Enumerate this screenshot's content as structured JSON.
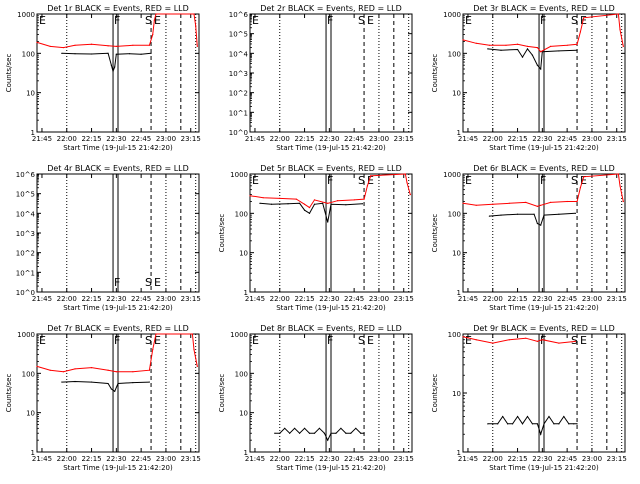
{
  "figure": {
    "colors": {
      "events": "#000000",
      "lld": "#ff0000",
      "axes": "#000000"
    }
  },
  "chart_data": [
    {
      "type": "line",
      "title": "Det 1r BLACK = Events, RED = LLD",
      "xlabel": "Start Time (19-Jul-15 21:42:20)",
      "ylabel": "Counts/sec",
      "yscale": "log",
      "xlim": [
        "21:42",
        "23:20"
      ],
      "ylim": [
        1,
        1000
      ],
      "xticks": [
        "21:45",
        "22:00",
        "22:15",
        "22:30",
        "22:45",
        "23:00",
        "23:15"
      ],
      "yticks": [
        "1",
        "10",
        "100",
        "1000"
      ],
      "annotations": [
        "E",
        "F",
        "S",
        "E"
      ],
      "series": [
        {
          "name": "Events",
          "color": "#000000",
          "x": [
            "21:57",
            "22:05",
            "22:15",
            "22:25",
            "22:27",
            "22:28",
            "22:29",
            "22:30",
            "22:38",
            "22:45",
            "22:51"
          ],
          "values": [
            100,
            98,
            96,
            100,
            50,
            35,
            45,
            95,
            98,
            95,
            100
          ]
        },
        {
          "name": "LLD",
          "color": "#ff0000",
          "x": [
            "21:42",
            "21:50",
            "21:58",
            "22:05",
            "22:15",
            "22:25",
            "22:30",
            "22:40",
            "22:50",
            "22:52",
            "22:53",
            "22:54",
            "23:17",
            "23:18",
            "23:19"
          ],
          "values": [
            190,
            150,
            140,
            160,
            170,
            155,
            150,
            160,
            160,
            300,
            700,
            1000,
            1000,
            500,
            150
          ]
        }
      ],
      "markers": {
        "dotted": [
          "22:00",
          "23:00",
          "23:18"
        ],
        "solid": [
          "22:28",
          "22:31"
        ],
        "dashed": [
          "22:51",
          "23:09"
        ]
      }
    },
    {
      "type": "line",
      "title": "Det 2r BLACK = Events, RED = LLD",
      "xlabel": "Start Time (19-Jul-15 21:42:20)",
      "ylabel": "",
      "yscale": "log",
      "xlim": [
        "21:42",
        "23:20"
      ],
      "ylim": [
        1,
        1000000
      ],
      "xticks": [
        "21:45",
        "22:00",
        "22:15",
        "22:30",
        "22:45",
        "23:00",
        "23:15"
      ],
      "yticks": [
        "10^0",
        "10^1",
        "10^2",
        "10^3",
        "10^4",
        "10^5",
        "10^6"
      ],
      "annotations": [
        "E",
        "F",
        "S",
        "E"
      ],
      "series": [],
      "markers": {
        "dotted": [
          "22:00",
          "23:00",
          "23:18"
        ],
        "solid": [
          "22:28",
          "22:31"
        ],
        "dashed": [
          "22:51",
          "23:09"
        ]
      }
    },
    {
      "type": "line",
      "title": "Det 3r BLACK = Events, RED = LLD",
      "xlabel": "Start Time (19-Jul-15 21:42:20)",
      "ylabel": "Counts/sec",
      "yscale": "log",
      "xlim": [
        "21:42",
        "23:20"
      ],
      "ylim": [
        1,
        1000
      ],
      "xticks": [
        "21:45",
        "22:00",
        "22:15",
        "22:30",
        "22:45",
        "23:00",
        "23:15"
      ],
      "yticks": [
        "1",
        "10",
        "100",
        "1000"
      ],
      "annotations": [
        "E",
        "F",
        "S",
        "E"
      ],
      "series": [
        {
          "name": "Events",
          "color": "#000000",
          "x": [
            "21:57",
            "22:05",
            "22:15",
            "22:18",
            "22:21",
            "22:24",
            "22:27",
            "22:29",
            "22:30",
            "22:40",
            "22:51"
          ],
          "values": [
            130,
            120,
            125,
            80,
            130,
            90,
            50,
            40,
            110,
            115,
            120
          ]
        },
        {
          "name": "LLD",
          "color": "#ff0000",
          "x": [
            "21:42",
            "21:50",
            "21:58",
            "22:08",
            "22:15",
            "22:21",
            "22:27",
            "22:29",
            "22:35",
            "22:45",
            "22:51",
            "22:53",
            "22:55",
            "23:16",
            "23:17",
            "23:19"
          ],
          "values": [
            220,
            180,
            160,
            160,
            170,
            150,
            140,
            110,
            150,
            160,
            170,
            350,
            800,
            1000,
            400,
            150
          ]
        }
      ],
      "markers": {
        "dotted": [
          "22:00",
          "23:00",
          "23:18"
        ],
        "solid": [
          "22:28",
          "22:31"
        ],
        "dashed": [
          "22:51",
          "23:09"
        ]
      }
    },
    {
      "type": "line",
      "title": "Det 4r BLACK = Events, RED = LLD",
      "xlabel": "Start Time (19-Jul-15 21:42:20)",
      "ylabel": "",
      "yscale": "log",
      "xlim": [
        "21:42",
        "23:20"
      ],
      "ylim": [
        1,
        1000000
      ],
      "xticks": [
        "21:45",
        "22:00",
        "22:15",
        "22:30",
        "22:45",
        "23:00",
        "23:15"
      ],
      "yticks": [
        "10^0",
        "10^1",
        "10^2",
        "10^3",
        "10^4",
        "10^5",
        "10^6"
      ],
      "annotations": [
        "F",
        "S",
        "E"
      ],
      "series": [],
      "markers": {
        "dotted": [
          "22:00",
          "23:00",
          "23:18"
        ],
        "solid": [
          "22:28",
          "22:31"
        ],
        "dashed": [
          "22:51",
          "23:09"
        ]
      }
    },
    {
      "type": "line",
      "title": "Det 5r BLACK = Events, RED = LLD",
      "xlabel": "Start Time (19-Jul-15 21:42:20)",
      "ylabel": "Counts/sec",
      "yscale": "log",
      "xlim": [
        "21:42",
        "23:20"
      ],
      "ylim": [
        1,
        1000
      ],
      "xticks": [
        "21:45",
        "22:00",
        "22:15",
        "22:30",
        "22:45",
        "23:00",
        "23:15"
      ],
      "yticks": [
        "1",
        "10",
        "100",
        "1000"
      ],
      "annotations": [
        "E",
        "F",
        "S",
        "E"
      ],
      "series": [
        {
          "name": "Events",
          "color": "#000000",
          "x": [
            "21:48",
            "21:55",
            "22:05",
            "22:12",
            "22:15",
            "22:18",
            "22:21",
            "22:26",
            "22:29",
            "22:31",
            "22:40",
            "22:50"
          ],
          "values": [
            180,
            170,
            175,
            180,
            120,
            100,
            170,
            180,
            60,
            170,
            165,
            175
          ]
        },
        {
          "name": "LLD",
          "color": "#ff0000",
          "x": [
            "21:42",
            "21:50",
            "22:00",
            "22:10",
            "22:15",
            "22:18",
            "22:21",
            "22:29",
            "22:35",
            "22:45",
            "22:51",
            "22:53",
            "22:55",
            "23:16",
            "23:17",
            "23:19"
          ],
          "values": [
            280,
            250,
            240,
            230,
            170,
            140,
            220,
            180,
            210,
            220,
            230,
            500,
            900,
            1000,
            600,
            300
          ]
        }
      ],
      "markers": {
        "dotted": [
          "22:00",
          "23:00",
          "23:18"
        ],
        "solid": [
          "22:28",
          "22:31"
        ],
        "dashed": [
          "22:51",
          "23:09"
        ]
      }
    },
    {
      "type": "line",
      "title": "Det 6r BLACK = Events, RED = LLD",
      "xlabel": "Start Time (19-Jul-15 21:42:20)",
      "ylabel": "Counts/sec",
      "yscale": "log",
      "xlim": [
        "21:42",
        "23:20"
      ],
      "ylim": [
        1,
        1000
      ],
      "xticks": [
        "21:45",
        "22:00",
        "22:15",
        "22:30",
        "22:45",
        "23:00",
        "23:15"
      ],
      "yticks": [
        "1",
        "10",
        "100",
        "1000"
      ],
      "annotations": [
        "E",
        "F",
        "S",
        "E"
      ],
      "series": [
        {
          "name": "Events",
          "color": "#000000",
          "x": [
            "21:58",
            "22:05",
            "22:15",
            "22:25",
            "22:27",
            "22:29",
            "22:31",
            "22:40",
            "22:50"
          ],
          "values": [
            85,
            90,
            95,
            95,
            55,
            50,
            90,
            95,
            100
          ]
        },
        {
          "name": "LLD",
          "color": "#ff0000",
          "x": [
            "21:42",
            "21:50",
            "22:00",
            "22:10",
            "22:20",
            "22:27",
            "22:29",
            "22:35",
            "22:45",
            "22:51",
            "22:53",
            "22:55",
            "23:16",
            "23:17",
            "23:19"
          ],
          "values": [
            180,
            160,
            170,
            180,
            190,
            150,
            160,
            190,
            200,
            200,
            450,
            850,
            1000,
            500,
            200
          ]
        }
      ],
      "markers": {
        "dotted": [
          "22:00",
          "23:00",
          "23:18"
        ],
        "solid": [
          "22:28",
          "22:31"
        ],
        "dashed": [
          "22:51",
          "23:09"
        ]
      }
    },
    {
      "type": "line",
      "title": "Det 7r BLACK = Events, RED = LLD",
      "xlabel": "Start Time (19-Jul-15 21:42:20)",
      "ylabel": "Counts/sec",
      "yscale": "log",
      "xlim": [
        "21:42",
        "23:20"
      ],
      "ylim": [
        1,
        1000
      ],
      "xticks": [
        "21:45",
        "22:00",
        "22:15",
        "22:30",
        "22:45",
        "23:00",
        "23:15"
      ],
      "yticks": [
        "1",
        "10",
        "100",
        "1000"
      ],
      "annotations": [
        "E",
        "F",
        "S",
        "E"
      ],
      "series": [
        {
          "name": "Events",
          "color": "#000000",
          "x": [
            "21:57",
            "22:05",
            "22:15",
            "22:25",
            "22:27",
            "22:29",
            "22:31",
            "22:40",
            "22:50"
          ],
          "values": [
            60,
            62,
            60,
            55,
            40,
            35,
            55,
            58,
            60
          ]
        },
        {
          "name": "LLD",
          "color": "#ff0000",
          "x": [
            "21:42",
            "21:50",
            "21:58",
            "22:05",
            "22:15",
            "22:25",
            "22:30",
            "22:40",
            "22:50",
            "22:52",
            "22:54",
            "23:16",
            "23:17",
            "23:19"
          ],
          "values": [
            150,
            120,
            110,
            130,
            140,
            120,
            110,
            110,
            120,
            400,
            1000,
            1000,
            400,
            150
          ]
        }
      ],
      "markers": {
        "dotted": [
          "22:00",
          "23:00",
          "23:18"
        ],
        "solid": [
          "22:28",
          "22:31"
        ],
        "dashed": [
          "22:51",
          "23:09"
        ]
      }
    },
    {
      "type": "line",
      "title": "Det 8r BLACK = Events, RED = LLD",
      "xlabel": "Start Time (19-Jul-15 21:42:20)",
      "ylabel": "Counts/sec",
      "yscale": "log",
      "xlim": [
        "21:42",
        "23:20"
      ],
      "ylim": [
        1,
        1000
      ],
      "xticks": [
        "21:45",
        "22:00",
        "22:15",
        "22:30",
        "22:45",
        "23:00",
        "23:15"
      ],
      "yticks": [
        "1",
        "10",
        "100",
        "1000"
      ],
      "annotations": [
        "E",
        "F",
        "S",
        "E"
      ],
      "series": [
        {
          "name": "Events",
          "color": "#000000",
          "x": [
            "21:57",
            "22:00",
            "22:03",
            "22:06",
            "22:09",
            "22:12",
            "22:15",
            "22:18",
            "22:21",
            "22:24",
            "22:27",
            "22:29",
            "22:31",
            "22:34",
            "22:37",
            "22:40",
            "22:43",
            "22:46",
            "22:49",
            "22:51"
          ],
          "values": [
            3,
            3,
            4,
            3,
            4,
            3,
            4,
            3,
            3,
            4,
            3,
            2,
            3,
            3,
            4,
            3,
            3,
            4,
            3,
            3
          ]
        }
      ],
      "markers": {
        "dotted": [
          "22:00",
          "23:00",
          "23:18"
        ],
        "solid": [
          "22:28",
          "22:31"
        ],
        "dashed": [
          "22:51",
          "23:09"
        ]
      }
    },
    {
      "type": "line",
      "title": "Det 9r BLACK = Events, RED = LLD",
      "xlabel": "Start Time (19-Jul-15 21:42:20)",
      "ylabel": "Counts/sec",
      "yscale": "log",
      "xlim": [
        "21:42",
        "23:20"
      ],
      "ylim": [
        1,
        100
      ],
      "xticks": [
        "21:45",
        "22:00",
        "22:15",
        "22:30",
        "22:45",
        "23:00",
        "23:15"
      ],
      "yticks": [
        "1",
        "10",
        "100"
      ],
      "annotations": [
        "E",
        "F",
        "S",
        "E"
      ],
      "series": [
        {
          "name": "Events",
          "color": "#000000",
          "x": [
            "21:57",
            "22:00",
            "22:03",
            "22:06",
            "22:09",
            "22:12",
            "22:15",
            "22:18",
            "22:21",
            "22:24",
            "22:27",
            "22:29",
            "22:31",
            "22:34",
            "22:37",
            "22:40",
            "22:43",
            "22:46",
            "22:49",
            "22:51"
          ],
          "values": [
            3,
            3,
            3,
            4,
            3,
            3,
            4,
            3,
            4,
            3,
            3,
            2,
            3,
            4,
            3,
            3,
            4,
            3,
            3,
            3
          ]
        },
        {
          "name": "LLD",
          "color": "#ff0000",
          "x": [
            "21:42",
            "21:50",
            "22:00",
            "22:10",
            "22:20",
            "22:27",
            "22:30",
            "22:40",
            "22:50"
          ],
          "values": [
            90,
            80,
            70,
            80,
            85,
            75,
            80,
            70,
            75
          ]
        }
      ],
      "markers": {
        "dotted": [
          "22:00",
          "23:00",
          "23:18"
        ],
        "solid": [
          "22:28",
          "22:31"
        ],
        "dashed": [
          "22:51",
          "23:09"
        ]
      }
    }
  ]
}
